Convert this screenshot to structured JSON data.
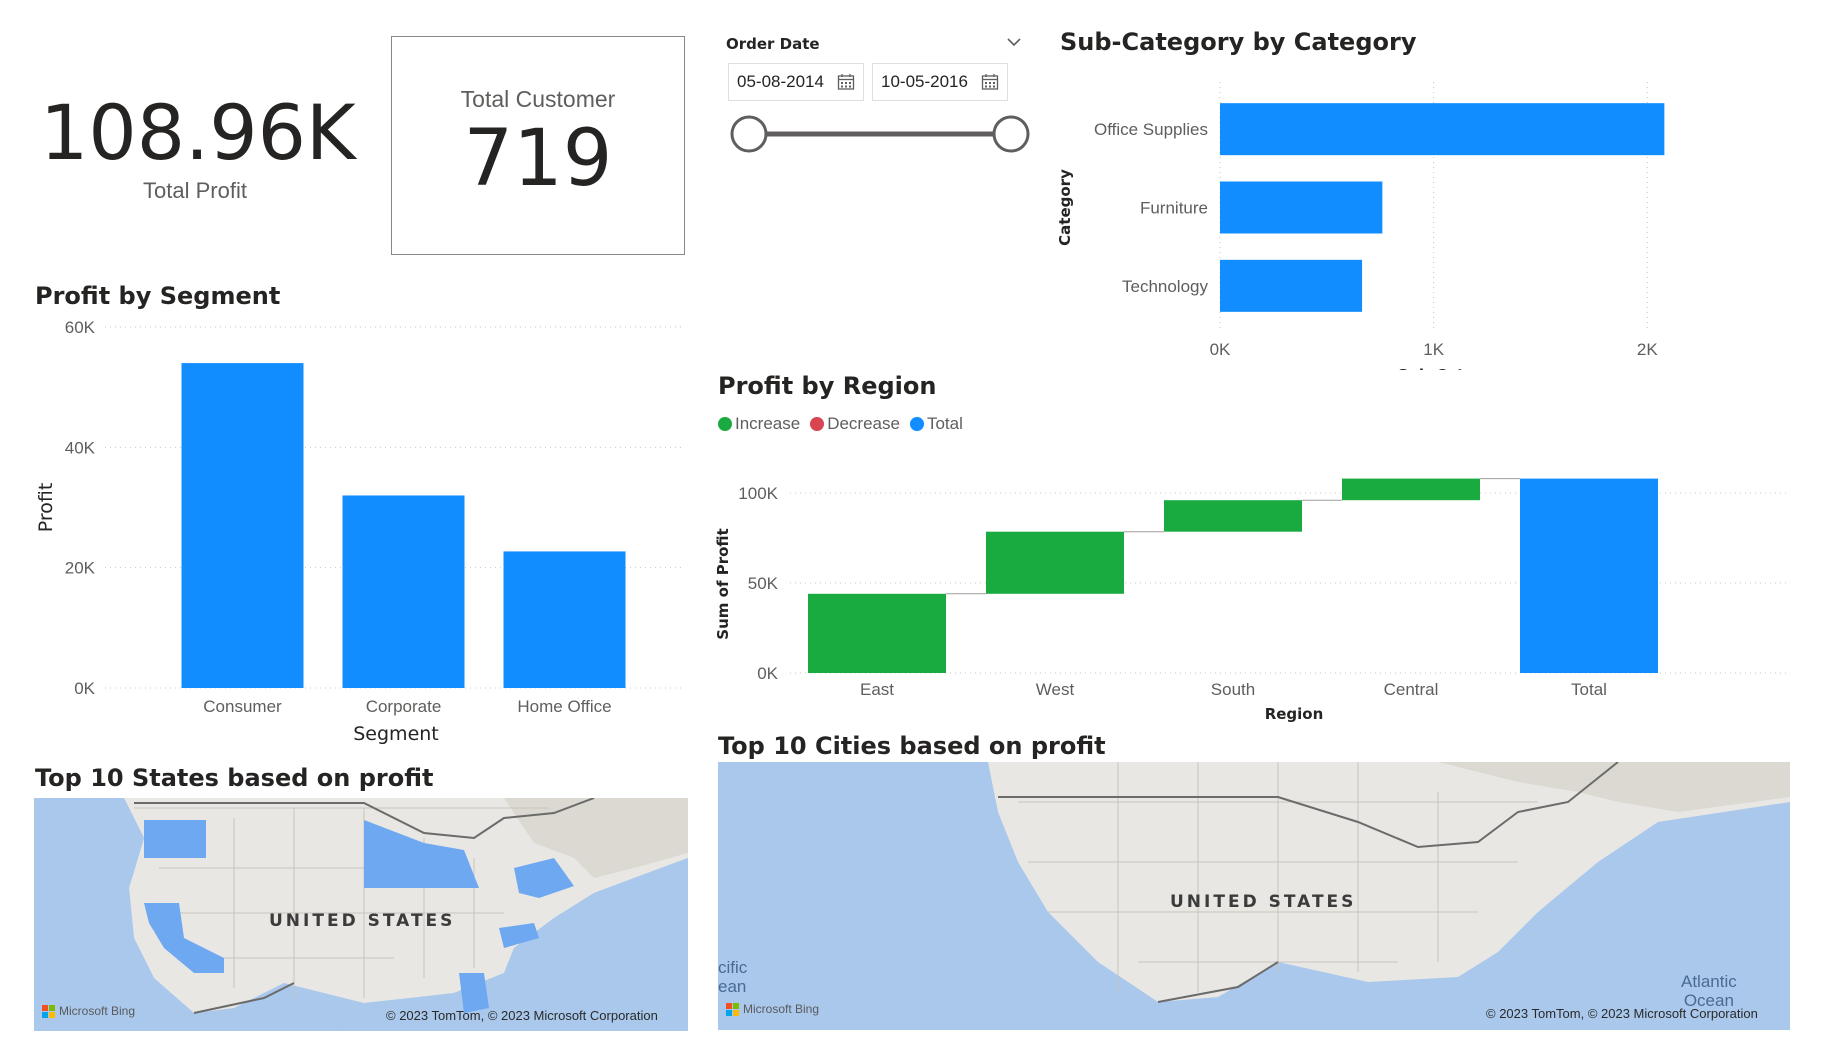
{
  "kpi_profit": {
    "value": "108.96K",
    "label": "Total Profit"
  },
  "kpi_customer": {
    "label": "Total Customer",
    "value": "719"
  },
  "slicer": {
    "label": "Order Date",
    "start": "05-08-2014",
    "end": "10-05-2016",
    "range_fraction": [
      0,
      1
    ]
  },
  "colors": {
    "blue": "#118dff",
    "increase": "#1aab40",
    "decrease": "#d64550",
    "total": "#118dff"
  },
  "chart_data": [
    {
      "id": "subcategory",
      "type": "bar",
      "orientation": "horizontal",
      "title": "Sub-Category by Category",
      "categories": [
        "Office Supplies",
        "Furniture",
        "Technology"
      ],
      "values": [
        2080,
        760,
        665
      ],
      "xlabel": "Sub-Category",
      "ylabel": "Category",
      "xlim": [
        0,
        2200
      ],
      "ticks": [
        {
          "v": 0,
          "label": "0K"
        },
        {
          "v": 1000,
          "label": "1K"
        },
        {
          "v": 2000,
          "label": "2K"
        }
      ],
      "grid": true
    },
    {
      "id": "segment",
      "type": "bar",
      "title": "Profit by Segment",
      "categories": [
        "Consumer",
        "Corporate",
        "Home Office"
      ],
      "values": [
        54000,
        32000,
        22700
      ],
      "xlabel": "Segment",
      "ylabel": "Profit",
      "ylim": [
        0,
        60000
      ],
      "ticks": [
        {
          "v": 0,
          "label": "0K"
        },
        {
          "v": 20000,
          "label": "20K"
        },
        {
          "v": 40000,
          "label": "40K"
        },
        {
          "v": 60000,
          "label": "60K"
        }
      ],
      "grid": true
    },
    {
      "id": "region",
      "type": "bar",
      "subtype": "waterfall",
      "title": "Profit by Region",
      "legend": [
        {
          "name": "Increase",
          "color": "#1aab40"
        },
        {
          "name": "Decrease",
          "color": "#d64550"
        },
        {
          "name": "Total",
          "color": "#118dff"
        }
      ],
      "categories": [
        "East",
        "West",
        "South",
        "Central",
        "Total"
      ],
      "values": [
        44000,
        34500,
        17500,
        12000,
        108000
      ],
      "xlabel": "Region",
      "ylabel": "Sum of Profit",
      "ylim": [
        0,
        110000
      ],
      "ticks": [
        {
          "v": 0,
          "label": "0K"
        },
        {
          "v": 50000,
          "label": "50K"
        },
        {
          "v": 100000,
          "label": "100K"
        }
      ],
      "grid": true
    }
  ],
  "map_states": {
    "title": "Top 10 States based on profit",
    "country_label": "UNITED STATES",
    "credit": "© 2023 TomTom, © 2023 Microsoft Corporation",
    "bing": "Microsoft Bing"
  },
  "map_cities": {
    "title": "Top 10 Cities based on profit",
    "country_label": "UNITED STATES",
    "ocean_pacific": "cific\nean",
    "ocean_atlantic": "Atlantic\nOcean",
    "credit": "© 2023 TomTom, © 2023 Microsoft Corporation",
    "bing": "Microsoft Bing"
  }
}
